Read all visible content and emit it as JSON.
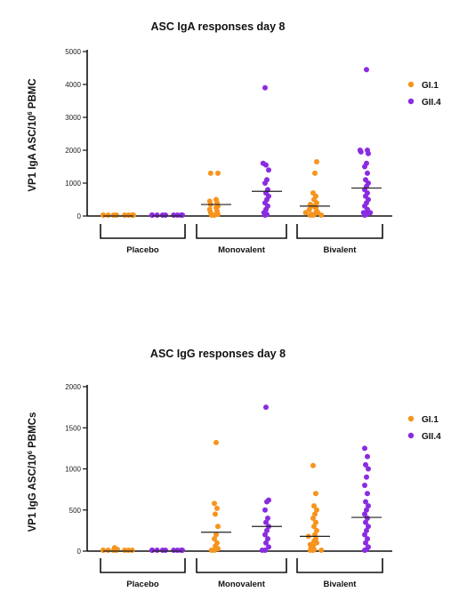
{
  "colors": {
    "gi1": "#f7941d",
    "gii4": "#8a2be2"
  },
  "chart_data": [
    {
      "type": "scatter",
      "title": "ASC IgA responses day 8",
      "ylabel": "VP1 IgA ASC/10",
      "ylabel_sup": "6",
      "ylabel_tail": " PBMC",
      "ylim": [
        0,
        5000
      ],
      "yticks": [
        "0",
        "1000",
        "2000",
        "3000",
        "4000",
        "5000"
      ],
      "ytick_values": [
        0,
        1000,
        2000,
        3000,
        4000,
        5000
      ],
      "groups": [
        "Placebo",
        "Monovalent",
        "Bivalent"
      ],
      "legend": {
        "placement": "right",
        "entries": [
          "GI.1",
          "GII.4"
        ]
      },
      "series": [
        {
          "name": "GI.1",
          "color_key": "gi1",
          "group_values": [
            [
              0,
              0,
              0,
              0,
              0,
              0,
              0,
              0,
              0,
              0
            ],
            [
              0,
              0,
              50,
              100,
              150,
              200,
              250,
              300,
              350,
              400,
              450,
              500,
              1300,
              1300
            ],
            [
              0,
              0,
              0,
              50,
              50,
              100,
              100,
              150,
              200,
              250,
              300,
              350,
              400,
              500,
              600,
              700,
              1300,
              1650
            ]
          ],
          "means": [
            0,
            350,
            300
          ]
        },
        {
          "name": "GII.4",
          "color_key": "gii4",
          "group_values": [
            [
              0,
              0,
              0,
              0,
              0,
              0,
              0,
              0,
              0,
              0
            ],
            [
              0,
              50,
              100,
              200,
              300,
              400,
              500,
              600,
              700,
              800,
              1000,
              1100,
              1400,
              1550,
              1600,
              3900
            ],
            [
              0,
              50,
              100,
              100,
              200,
              300,
              400,
              500,
              600,
              700,
              800,
              900,
              1000,
              1100,
              1300,
              1500,
              1600,
              1900,
              1950,
              2000,
              2000,
              4450
            ]
          ],
          "means": [
            0,
            750,
            850
          ]
        }
      ]
    },
    {
      "type": "scatter",
      "title": "ASC IgG responses day 8",
      "ylabel": "VP1 IgG ASC/10",
      "ylabel_sup": "6",
      "ylabel_tail": " PBMCs",
      "ylim": [
        0,
        2000
      ],
      "yticks": [
        "0",
        "500",
        "1000",
        "1500",
        "2000"
      ],
      "ytick_values": [
        0,
        500,
        1000,
        1500,
        2000
      ],
      "groups": [
        "Placebo",
        "Monovalent",
        "Bivalent"
      ],
      "legend": {
        "placement": "right",
        "entries": [
          "GI.1",
          "GII.4"
        ]
      },
      "series": [
        {
          "name": "GI.1",
          "color_key": "gi1",
          "group_values": [
            [
              0,
              0,
              0,
              0,
              0,
              0,
              0,
              0,
              20,
              40
            ],
            [
              0,
              0,
              30,
              60,
              100,
              150,
              200,
              300,
              450,
              520,
              580,
              1320
            ],
            [
              0,
              0,
              0,
              20,
              40,
              60,
              80,
              100,
              120,
              150,
              180,
              200,
              250,
              300,
              350,
              400,
              450,
              500,
              550,
              700,
              1040
            ]
          ],
          "means": [
            0,
            230,
            180
          ]
        },
        {
          "name": "GII.4",
          "color_key": "gii4",
          "group_values": [
            [
              0,
              0,
              0,
              0,
              0,
              0,
              0,
              0,
              0,
              0
            ],
            [
              0,
              0,
              50,
              100,
              150,
              200,
              250,
              300,
              350,
              400,
              500,
              600,
              620,
              1750
            ],
            [
              0,
              20,
              50,
              100,
              150,
              200,
              250,
              300,
              350,
              400,
              450,
              500,
              550,
              600,
              700,
              800,
              900,
              1000,
              1050,
              1150,
              1250
            ]
          ],
          "means": [
            0,
            300,
            410
          ]
        }
      ]
    }
  ]
}
